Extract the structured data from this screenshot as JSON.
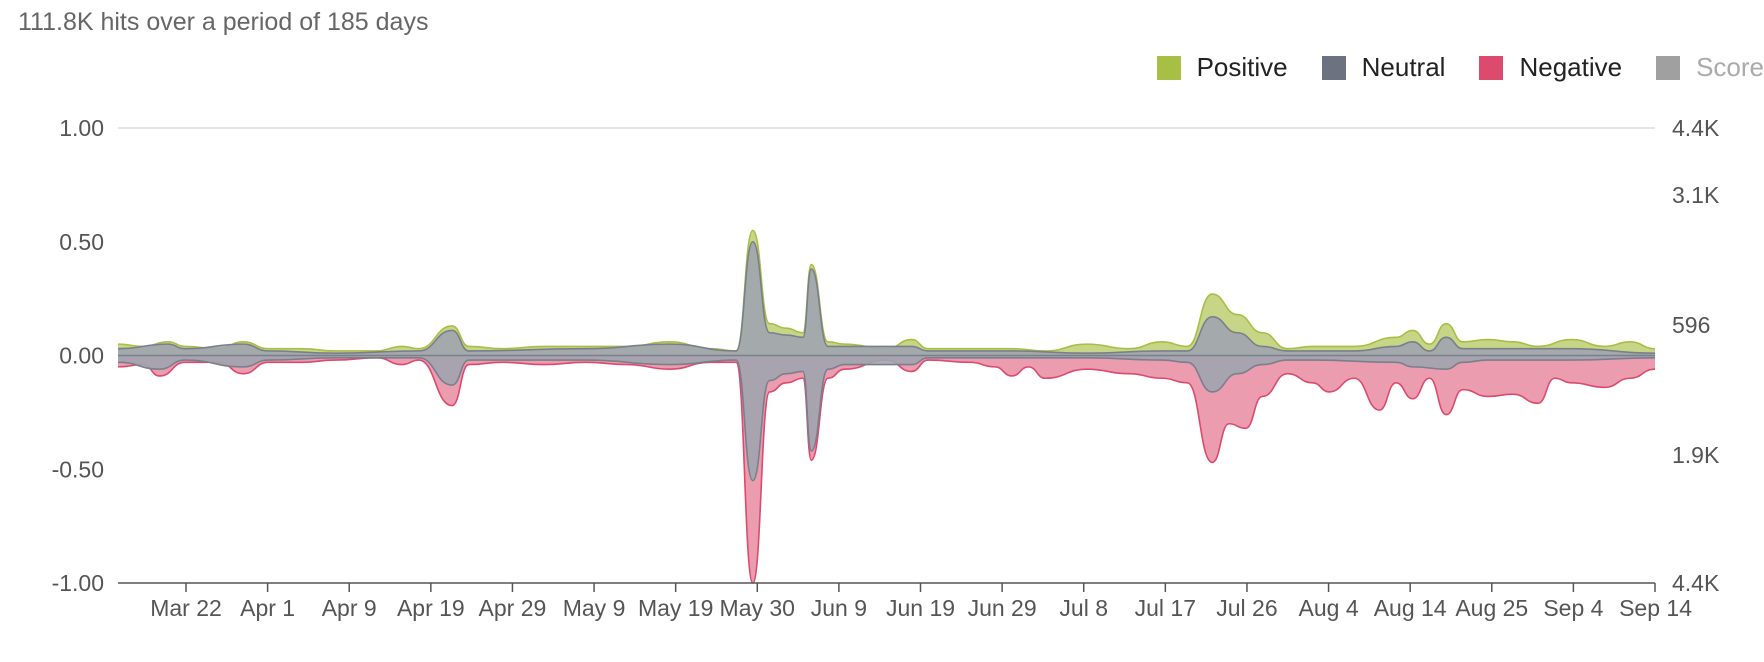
{
  "summary": "111.8K hits over a period of 185 days",
  "legend": [
    {
      "label": "Positive",
      "color": "#a8bf45",
      "active": true
    },
    {
      "label": "Neutral",
      "color": "#6d7281",
      "active": true
    },
    {
      "label": "Negative",
      "color": "#dc4a6e",
      "active": true
    },
    {
      "label": "Score",
      "color": "#a0a0a0",
      "active": false
    }
  ],
  "chart_data": {
    "type": "area",
    "title": "",
    "xlabel": "",
    "ylabel": "",
    "left_axis": {
      "ylim": [
        -1,
        1
      ],
      "ticks": [
        "1.00",
        "0.50",
        "0.00",
        "-0.50",
        "-1.00"
      ]
    },
    "right_axis": {
      "ticks": [
        "4.4K",
        "3.1K",
        "596",
        "1.9K",
        "4.4K"
      ]
    },
    "x_tick_labels": [
      "Mar 22",
      "Apr 1",
      "Apr 9",
      "Apr 19",
      "Apr 29",
      "May 9",
      "May 19",
      "May 30",
      "Jun 9",
      "Jun 19",
      "Jun 29",
      "Jul 8",
      "Jul 17",
      "Jul 26",
      "Aug 4",
      "Aug 14",
      "Aug 25",
      "Sep 4",
      "Sep 14"
    ],
    "x_range": [
      "Mar 14",
      "Sep 14"
    ],
    "gridlines": [
      1.0
    ],
    "legend_position": "top-right",
    "series": [
      {
        "name": "Positive",
        "color": "#a8bf45",
        "points": [
          [
            "Mar 14",
            0.05
          ],
          [
            "Mar 17",
            0.04
          ],
          [
            "Mar 20",
            0.06
          ],
          [
            "Mar 22",
            0.04
          ],
          [
            "Mar 26",
            0.03
          ],
          [
            "Mar 29",
            0.06
          ],
          [
            "Apr 1",
            0.03
          ],
          [
            "Apr 5",
            0.03
          ],
          [
            "Apr 9",
            0.02
          ],
          [
            "Apr 14",
            0.02
          ],
          [
            "Apr 17",
            0.04
          ],
          [
            "Apr 19",
            0.03
          ],
          [
            "Apr 23",
            0.13
          ],
          [
            "Apr 25",
            0.04
          ],
          [
            "Apr 29",
            0.03
          ],
          [
            "May 4",
            0.04
          ],
          [
            "May 9",
            0.04
          ],
          [
            "May 14",
            0.04
          ],
          [
            "May 19",
            0.06
          ],
          [
            "May 24",
            0.03
          ],
          [
            "May 27",
            0.02
          ],
          [
            "May 29",
            0.55
          ],
          [
            "May 31",
            0.14
          ],
          [
            "Jun 2",
            0.12
          ],
          [
            "Jun 4",
            0.1
          ],
          [
            "Jun 5",
            0.4
          ],
          [
            "Jun 7",
            0.06
          ],
          [
            "Jun 9",
            0.05
          ],
          [
            "Jun 14",
            0.03
          ],
          [
            "Jun 17",
            0.07
          ],
          [
            "Jun 19",
            0.03
          ],
          [
            "Jun 24",
            0.03
          ],
          [
            "Jun 29",
            0.03
          ],
          [
            "Jul 3",
            0.02
          ],
          [
            "Jul 8",
            0.05
          ],
          [
            "Jul 13",
            0.03
          ],
          [
            "Jul 17",
            0.06
          ],
          [
            "Jul 20",
            0.04
          ],
          [
            "Jul 23",
            0.27
          ],
          [
            "Jul 26",
            0.18
          ],
          [
            "Jul 29",
            0.1
          ],
          [
            "Aug 1",
            0.03
          ],
          [
            "Aug 4",
            0.04
          ],
          [
            "Aug 9",
            0.04
          ],
          [
            "Aug 14",
            0.08
          ],
          [
            "Aug 16",
            0.11
          ],
          [
            "Aug 18",
            0.05
          ],
          [
            "Aug 20",
            0.14
          ],
          [
            "Aug 22",
            0.06
          ],
          [
            "Aug 25",
            0.07
          ],
          [
            "Aug 28",
            0.06
          ],
          [
            "Aug 31",
            0.04
          ],
          [
            "Sep 4",
            0.07
          ],
          [
            "Sep 8",
            0.04
          ],
          [
            "Sep 11",
            0.06
          ],
          [
            "Sep 14",
            0.03
          ]
        ]
      },
      {
        "name": "Neutral",
        "color": "#6d7281",
        "points": [
          [
            "Mar 14",
            0.03
          ],
          [
            "Mar 20",
            0.05
          ],
          [
            "Mar 22",
            0.03
          ],
          [
            "Mar 29",
            0.05
          ],
          [
            "Apr 1",
            0.02
          ],
          [
            "Apr 9",
            0.01
          ],
          [
            "Apr 19",
            0.02
          ],
          [
            "Apr 23",
            0.11
          ],
          [
            "Apr 25",
            0.02
          ],
          [
            "May 9",
            0.03
          ],
          [
            "May 19",
            0.05
          ],
          [
            "May 27",
            0.02
          ],
          [
            "May 29",
            0.5
          ],
          [
            "May 31",
            0.1
          ],
          [
            "Jun 2",
            0.09
          ],
          [
            "Jun 4",
            0.08
          ],
          [
            "Jun 5",
            0.38
          ],
          [
            "Jun 7",
            0.04
          ],
          [
            "Jun 9",
            0.04
          ],
          [
            "Jun 17",
            0.04
          ],
          [
            "Jun 19",
            0.02
          ],
          [
            "Jun 29",
            0.02
          ],
          [
            "Jul 8",
            0.01
          ],
          [
            "Jul 17",
            0.02
          ],
          [
            "Jul 20",
            0.02
          ],
          [
            "Jul 23",
            0.17
          ],
          [
            "Jul 26",
            0.1
          ],
          [
            "Jul 29",
            0.04
          ],
          [
            "Aug 1",
            0.02
          ],
          [
            "Aug 4",
            0.02
          ],
          [
            "Aug 9",
            0.02
          ],
          [
            "Aug 14",
            0.04
          ],
          [
            "Aug 16",
            0.06
          ],
          [
            "Aug 18",
            0.02
          ],
          [
            "Aug 20",
            0.08
          ],
          [
            "Aug 22",
            0.03
          ],
          [
            "Aug 25",
            0.03
          ],
          [
            "Sep 4",
            0.03
          ],
          [
            "Sep 14",
            0.01
          ]
        ]
      },
      {
        "name": "Negative",
        "color": "#dc4a6e",
        "points": [
          [
            "Mar 14",
            -0.05
          ],
          [
            "Mar 17",
            -0.04
          ],
          [
            "Mar 19",
            -0.09
          ],
          [
            "Mar 22",
            -0.03
          ],
          [
            "Mar 26",
            -0.03
          ],
          [
            "Mar 29",
            -0.08
          ],
          [
            "Apr 1",
            -0.03
          ],
          [
            "Apr 5",
            -0.03
          ],
          [
            "Apr 9",
            -0.02
          ],
          [
            "Apr 14",
            -0.01
          ],
          [
            "Apr 17",
            -0.04
          ],
          [
            "Apr 19",
            -0.02
          ],
          [
            "Apr 23",
            -0.22
          ],
          [
            "Apr 25",
            -0.04
          ],
          [
            "Apr 29",
            -0.03
          ],
          [
            "May 4",
            -0.04
          ],
          [
            "May 9",
            -0.03
          ],
          [
            "May 14",
            -0.04
          ],
          [
            "May 19",
            -0.06
          ],
          [
            "May 24",
            -0.03
          ],
          [
            "May 27",
            -0.03
          ],
          [
            "May 29",
            -1.0
          ],
          [
            "May 31",
            -0.16
          ],
          [
            "Jun 2",
            -0.12
          ],
          [
            "Jun 4",
            -0.1
          ],
          [
            "Jun 5",
            -0.46
          ],
          [
            "Jun 7",
            -0.1
          ],
          [
            "Jun 9",
            -0.06
          ],
          [
            "Jun 14",
            -0.02
          ],
          [
            "Jun 17",
            -0.07
          ],
          [
            "Jun 19",
            -0.02
          ],
          [
            "Jun 24",
            -0.03
          ],
          [
            "Jun 27",
            -0.05
          ],
          [
            "Jun 29",
            -0.09
          ],
          [
            "Jul 1",
            -0.05
          ],
          [
            "Jul 3",
            -0.1
          ],
          [
            "Jul 8",
            -0.06
          ],
          [
            "Jul 13",
            -0.08
          ],
          [
            "Jul 17",
            -0.1
          ],
          [
            "Jul 20",
            -0.12
          ],
          [
            "Jul 23",
            -0.47
          ],
          [
            "Jul 25",
            -0.3
          ],
          [
            "Jul 27",
            -0.32
          ],
          [
            "Jul 29",
            -0.18
          ],
          [
            "Aug 1",
            -0.08
          ],
          [
            "Aug 4",
            -0.12
          ],
          [
            "Aug 6",
            -0.16
          ],
          [
            "Aug 9",
            -0.1
          ],
          [
            "Aug 12",
            -0.24
          ],
          [
            "Aug 14",
            -0.12
          ],
          [
            "Aug 16",
            -0.19
          ],
          [
            "Aug 18",
            -0.1
          ],
          [
            "Aug 20",
            -0.26
          ],
          [
            "Aug 22",
            -0.15
          ],
          [
            "Aug 25",
            -0.18
          ],
          [
            "Aug 28",
            -0.17
          ],
          [
            "Aug 31",
            -0.21
          ],
          [
            "Sep 2",
            -0.1
          ],
          [
            "Sep 4",
            -0.12
          ],
          [
            "Sep 8",
            -0.14
          ],
          [
            "Sep 11",
            -0.1
          ],
          [
            "Sep 14",
            -0.06
          ]
        ]
      },
      {
        "name": "Neutral (below axis)",
        "color": "#6d7281",
        "points": [
          [
            "Mar 14",
            -0.03
          ],
          [
            "Mar 19",
            -0.06
          ],
          [
            "Mar 22",
            -0.02
          ],
          [
            "Mar 29",
            -0.05
          ],
          [
            "Apr 1",
            -0.02
          ],
          [
            "Apr 9",
            -0.01
          ],
          [
            "Apr 19",
            -0.01
          ],
          [
            "Apr 23",
            -0.13
          ],
          [
            "Apr 25",
            -0.02
          ],
          [
            "May 9",
            -0.02
          ],
          [
            "May 19",
            -0.04
          ],
          [
            "May 27",
            -0.02
          ],
          [
            "May 29",
            -0.55
          ],
          [
            "May 31",
            -0.11
          ],
          [
            "Jun 2",
            -0.08
          ],
          [
            "Jun 4",
            -0.07
          ],
          [
            "Jun 5",
            -0.42
          ],
          [
            "Jun 7",
            -0.06
          ],
          [
            "Jun 9",
            -0.04
          ],
          [
            "Jun 17",
            -0.04
          ],
          [
            "Jun 19",
            -0.01
          ],
          [
            "Jun 29",
            -0.01
          ],
          [
            "Jul 8",
            -0.01
          ],
          [
            "Jul 17",
            -0.02
          ],
          [
            "Jul 20",
            -0.03
          ],
          [
            "Jul 23",
            -0.16
          ],
          [
            "Jul 26",
            -0.08
          ],
          [
            "Jul 29",
            -0.04
          ],
          [
            "Aug 1",
            -0.02
          ],
          [
            "Aug 4",
            -0.02
          ],
          [
            "Aug 14",
            -0.03
          ],
          [
            "Aug 16",
            -0.05
          ],
          [
            "Aug 20",
            -0.06
          ],
          [
            "Aug 22",
            -0.03
          ],
          [
            "Aug 25",
            -0.02
          ],
          [
            "Sep 4",
            -0.02
          ],
          [
            "Sep 14",
            -0.01
          ]
        ]
      }
    ]
  }
}
